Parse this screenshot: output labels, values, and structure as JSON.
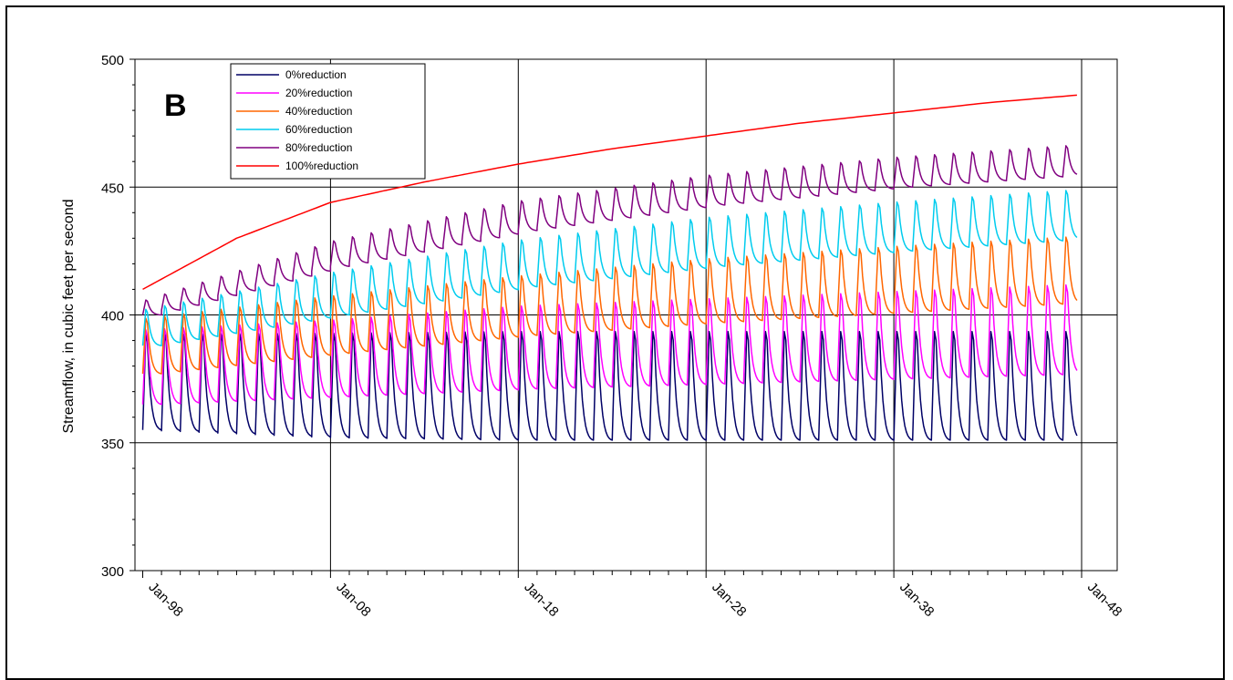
{
  "chart_data": {
    "type": "line",
    "title": "",
    "panel_label": "B",
    "xlabel": "",
    "ylabel": "Streamflow, in cubic feet per second",
    "x_start_year": 1998,
    "x_end_year": 2048,
    "x_ticks": [
      "Jan-98",
      "Jan-08",
      "Jan-18",
      "Jan-28",
      "Jan-38",
      "Jan-48"
    ],
    "ylim": [
      300,
      500
    ],
    "y_ticks": [
      300,
      350,
      400,
      450,
      500
    ],
    "grid": true,
    "legend_placement": "top-left",
    "series": [
      {
        "name": "0%reduction",
        "color": "#000066",
        "min_values": [
          355,
          352,
          351,
          351,
          351,
          351
        ],
        "max_values": [
          400,
          401,
          402,
          402,
          402,
          402
        ]
      },
      {
        "name": "20%reduction",
        "color": "#ff00ff",
        "min_values": [
          365,
          368,
          371,
          373,
          375,
          377
        ],
        "max_values": [
          400,
          404,
          410,
          413,
          416,
          419
        ]
      },
      {
        "name": "40%reduction",
        "color": "#ff6600",
        "min_values": [
          377,
          385,
          392,
          397,
          401,
          405
        ],
        "max_values": [
          403,
          412,
          420,
          427,
          432,
          436
        ]
      },
      {
        "name": "60%reduction",
        "color": "#00ccee",
        "min_values": [
          388,
          400,
          411,
          419,
          425,
          430
        ],
        "max_values": [
          405,
          420,
          433,
          442,
          448,
          453
        ]
      },
      {
        "name": "80%reduction",
        "color": "#800080",
        "min_values": [
          400,
          419,
          433,
          443,
          450,
          455
        ],
        "max_values": [
          407,
          431,
          447,
          457,
          464,
          469
        ]
      },
      {
        "name": "100%reduction",
        "color": "#ff0000",
        "x_values": [
          1998,
          2000,
          2003,
          2008,
          2013,
          2018,
          2023,
          2028,
          2033,
          2038,
          2043,
          2047.8
        ],
        "values": [
          410,
          418,
          430,
          444,
          452,
          459,
          465,
          470,
          475,
          479,
          483,
          486
        ]
      }
    ]
  }
}
